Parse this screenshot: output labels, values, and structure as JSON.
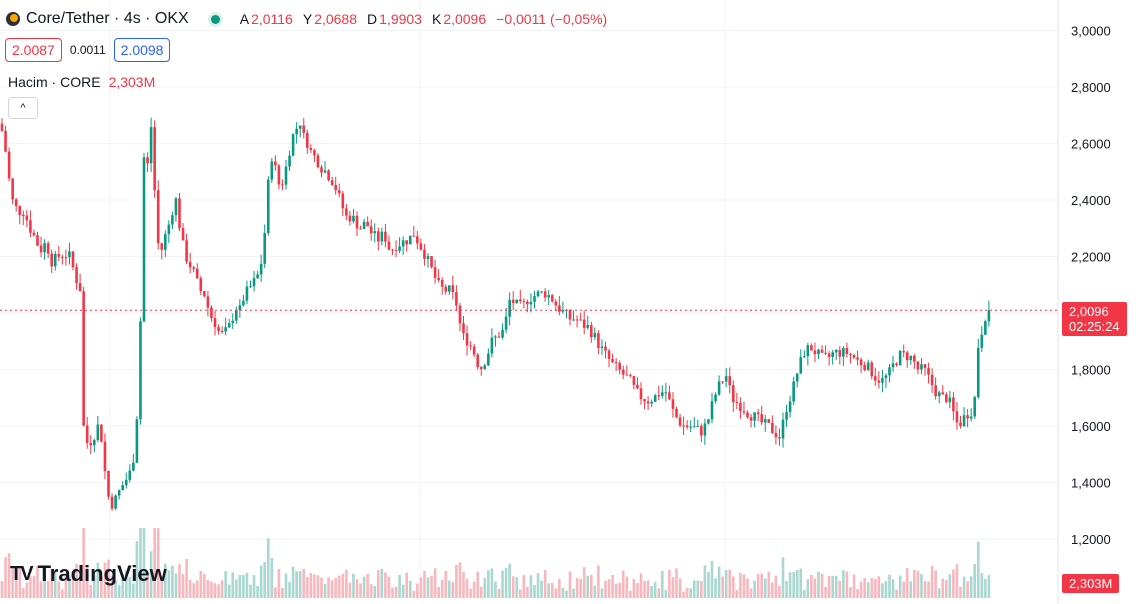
{
  "header": {
    "symbol": "Core/Tether · 4s · OKX",
    "ohlc": [
      {
        "key": "A",
        "value": "2,0116"
      },
      {
        "key": "Y",
        "value": "2,0688"
      },
      {
        "key": "D",
        "value": "1,9903"
      },
      {
        "key": "K",
        "value": "2,0096"
      }
    ],
    "change": "−0,0011 (−0,05%)"
  },
  "trade": {
    "sell": "2.0087",
    "spread": "0.0011",
    "buy": "2.0098"
  },
  "volume_legend": {
    "label": "Hacim · CORE",
    "value": "2,303M"
  },
  "collapse_icon": "chevron-up-icon",
  "branding": {
    "text": "TradingView"
  },
  "price_tag": {
    "price": "2,0096",
    "countdown": "02:25:24",
    "color": "#f23645"
  },
  "volume_tag": {
    "value": "2,303M"
  },
  "colors": {
    "up": "#089981",
    "down": "#f23645",
    "up_volume": "#a8d8cf",
    "down_volume": "#f7b7bd"
  },
  "chart_data": {
    "type": "candlestick",
    "y_axis": {
      "range": [
        1.08,
        3.08
      ],
      "ticks": [
        3.0,
        2.8,
        2.6,
        2.4,
        2.2,
        2.0,
        1.8,
        1.6,
        1.4,
        1.2
      ],
      "tick_labels": [
        "3,0000",
        "2,8000",
        "2,6000",
        "2,4000",
        "2,2000",
        "2,0000",
        "1,8000",
        "1,6000",
        "1,4000",
        "1,2000"
      ]
    },
    "last_price": 2.0096,
    "grid": true,
    "close_path": [
      [
        0,
        2.67
      ],
      [
        4,
        2.62
      ],
      [
        8,
        2.5
      ],
      [
        12,
        2.4
      ],
      [
        18,
        2.36
      ],
      [
        24,
        2.36
      ],
      [
        30,
        2.3
      ],
      [
        36,
        2.26
      ],
      [
        40,
        2.22
      ],
      [
        46,
        2.25
      ],
      [
        52,
        2.18
      ],
      [
        58,
        2.2
      ],
      [
        64,
        2.21
      ],
      [
        70,
        2.2
      ],
      [
        76,
        2.12
      ],
      [
        80,
        2.1
      ],
      [
        84,
        1.55
      ],
      [
        88,
        1.54
      ],
      [
        92,
        1.55
      ],
      [
        98,
        1.6
      ],
      [
        102,
        1.55
      ],
      [
        106,
        1.4
      ],
      [
        110,
        1.32
      ],
      [
        114,
        1.33
      ],
      [
        118,
        1.36
      ],
      [
        124,
        1.4
      ],
      [
        128,
        1.42
      ],
      [
        132,
        1.45
      ],
      [
        136,
        1.56
      ],
      [
        140,
        1.9
      ],
      [
        144,
        2.55
      ],
      [
        148,
        2.52
      ],
      [
        152,
        2.7
      ],
      [
        156,
        2.3
      ],
      [
        160,
        2.2
      ],
      [
        164,
        2.26
      ],
      [
        168,
        2.3
      ],
      [
        172,
        2.36
      ],
      [
        176,
        2.4
      ],
      [
        180,
        2.3
      ],
      [
        184,
        2.22
      ],
      [
        188,
        2.18
      ],
      [
        192,
        2.16
      ],
      [
        196,
        2.12
      ],
      [
        200,
        2.08
      ],
      [
        204,
        2.07
      ],
      [
        208,
        2.02
      ],
      [
        212,
        1.98
      ],
      [
        216,
        1.96
      ],
      [
        220,
        1.92
      ],
      [
        224,
        1.93
      ],
      [
        228,
        1.94
      ],
      [
        232,
        1.98
      ],
      [
        236,
        2.02
      ],
      [
        240,
        2.01
      ],
      [
        244,
        2.06
      ],
      [
        248,
        2.08
      ],
      [
        252,
        2.1
      ],
      [
        256,
        2.12
      ],
      [
        260,
        2.15
      ],
      [
        264,
        2.25
      ],
      [
        268,
        2.45
      ],
      [
        272,
        2.56
      ],
      [
        276,
        2.5
      ],
      [
        280,
        2.44
      ],
      [
        284,
        2.48
      ],
      [
        288,
        2.55
      ],
      [
        292,
        2.62
      ],
      [
        296,
        2.65
      ],
      [
        300,
        2.68
      ],
      [
        304,
        2.62
      ],
      [
        308,
        2.6
      ],
      [
        312,
        2.56
      ],
      [
        316,
        2.55
      ],
      [
        320,
        2.52
      ],
      [
        326,
        2.5
      ],
      [
        332,
        2.47
      ],
      [
        336,
        2.44
      ],
      [
        340,
        2.4
      ],
      [
        346,
        2.34
      ],
      [
        352,
        2.34
      ],
      [
        360,
        2.3
      ],
      [
        366,
        2.32
      ],
      [
        372,
        2.28
      ],
      [
        378,
        2.26
      ],
      [
        384,
        2.28
      ],
      [
        390,
        2.22
      ],
      [
        396,
        2.24
      ],
      [
        402,
        2.25
      ],
      [
        408,
        2.26
      ],
      [
        414,
        2.28
      ],
      [
        420,
        2.24
      ],
      [
        426,
        2.2
      ],
      [
        432,
        2.15
      ],
      [
        438,
        2.1
      ],
      [
        444,
        2.08
      ],
      [
        450,
        2.08
      ],
      [
        456,
        2.04
      ],
      [
        462,
        1.92
      ],
      [
        468,
        1.9
      ],
      [
        474,
        1.86
      ],
      [
        480,
        1.8
      ],
      [
        486,
        1.84
      ],
      [
        492,
        1.9
      ],
      [
        498,
        1.92
      ],
      [
        504,
        1.94
      ],
      [
        510,
        2.05
      ],
      [
        516,
        2.03
      ],
      [
        522,
        2.02
      ],
      [
        528,
        2.05
      ],
      [
        534,
        2.06
      ],
      [
        540,
        2.07
      ],
      [
        546,
        2.07
      ],
      [
        552,
        2.05
      ],
      [
        558,
        2.02
      ],
      [
        564,
        2.0
      ],
      [
        570,
        1.98
      ],
      [
        576,
        1.98
      ],
      [
        582,
        1.96
      ],
      [
        588,
        1.95
      ],
      [
        594,
        1.92
      ],
      [
        600,
        1.88
      ],
      [
        606,
        1.85
      ],
      [
        612,
        1.82
      ],
      [
        618,
        1.8
      ],
      [
        624,
        1.78
      ],
      [
        630,
        1.76
      ],
      [
        636,
        1.72
      ],
      [
        642,
        1.7
      ],
      [
        648,
        1.69
      ],
      [
        654,
        1.7
      ],
      [
        660,
        1.72
      ],
      [
        666,
        1.72
      ],
      [
        672,
        1.66
      ],
      [
        678,
        1.62
      ],
      [
        684,
        1.6
      ],
      [
        690,
        1.6
      ],
      [
        696,
        1.59
      ],
      [
        702,
        1.58
      ],
      [
        708,
        1.62
      ],
      [
        714,
        1.7
      ],
      [
        720,
        1.75
      ],
      [
        726,
        1.78
      ],
      [
        732,
        1.7
      ],
      [
        738,
        1.68
      ],
      [
        744,
        1.66
      ],
      [
        750,
        1.64
      ],
      [
        756,
        1.63
      ],
      [
        762,
        1.61
      ],
      [
        768,
        1.6
      ],
      [
        774,
        1.58
      ],
      [
        780,
        1.56
      ],
      [
        786,
        1.66
      ],
      [
        792,
        1.72
      ],
      [
        798,
        1.8
      ],
      [
        804,
        1.86
      ],
      [
        810,
        1.88
      ],
      [
        816,
        1.86
      ],
      [
        822,
        1.84
      ],
      [
        828,
        1.84
      ],
      [
        834,
        1.86
      ],
      [
        840,
        1.86
      ],
      [
        846,
        1.86
      ],
      [
        852,
        1.85
      ],
      [
        858,
        1.83
      ],
      [
        864,
        1.82
      ],
      [
        870,
        1.8
      ],
      [
        876,
        1.77
      ],
      [
        882,
        1.76
      ],
      [
        888,
        1.78
      ],
      [
        894,
        1.82
      ],
      [
        900,
        1.85
      ],
      [
        906,
        1.85
      ],
      [
        912,
        1.84
      ],
      [
        918,
        1.8
      ],
      [
        924,
        1.8
      ],
      [
        930,
        1.76
      ],
      [
        936,
        1.72
      ],
      [
        942,
        1.7
      ],
      [
        948,
        1.7
      ],
      [
        954,
        1.64
      ],
      [
        958,
        1.6
      ],
      [
        962,
        1.62
      ],
      [
        966,
        1.64
      ],
      [
        970,
        1.65
      ],
      [
        974,
        1.66
      ],
      [
        978,
        1.88
      ],
      [
        982,
        1.94
      ],
      [
        986,
        2.0
      ],
      [
        990,
        2.0096
      ]
    ]
  }
}
